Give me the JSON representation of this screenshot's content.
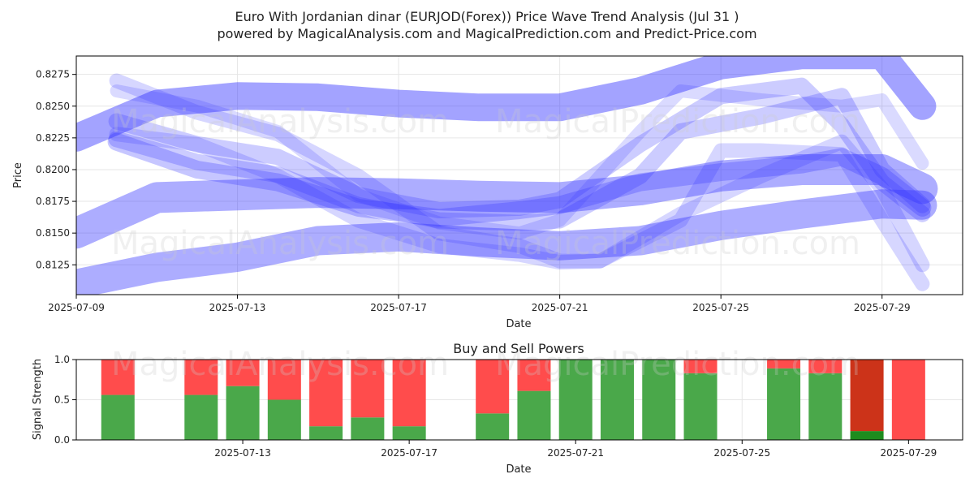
{
  "title_line1": "Euro With Jordanian dinar (EURJOD(Forex)) Price Wave Trend Analysis (Jul 31 )",
  "title_line2": "powered by MagicalAnalysis.com and MagicalPrediction.com and Predict-Price.com",
  "watermarks": [
    "MagicalAnalysis.com",
    "MagicalPrediction.com"
  ],
  "colors": {
    "wave": "#3333ff",
    "buy": "#4aa84a",
    "sell": "#ff4c4c",
    "buy_dark": "#1e8c1e",
    "sell_dark": "#cc3319"
  },
  "chart_data": [
    {
      "type": "line",
      "title": "",
      "xlabel": "Date",
      "ylabel": "Price",
      "x_ticks": [
        "2025-07-09",
        "2025-07-13",
        "2025-07-17",
        "2025-07-21",
        "2025-07-25",
        "2025-07-29"
      ],
      "y_ticks": [
        "0.8125",
        "0.8150",
        "0.8175",
        "0.8200",
        "0.8225",
        "0.8250",
        "0.8275"
      ],
      "xlim": [
        "2025-07-09",
        "2025-07-31"
      ],
      "ylim": [
        0.81015,
        0.82895
      ],
      "grid": true,
      "series": [
        {
          "x": [
            "2025-07-09",
            "2025-07-11",
            "2025-07-13",
            "2025-07-15",
            "2025-07-17",
            "2025-07-19",
            "2025-07-21",
            "2025-07-23",
            "2025-07-25",
            "2025-07-27",
            "2025-07-29",
            "2025-07-30"
          ],
          "values": [
            0.8225,
            0.8252,
            0.8258,
            0.8257,
            0.8252,
            0.8249,
            0.8249,
            0.8262,
            0.8282,
            0.829,
            0.829,
            0.825
          ],
          "width": 34,
          "opacity": 0.45
        },
        {
          "x": [
            "2025-07-09",
            "2025-07-11",
            "2025-07-13",
            "2025-07-15",
            "2025-07-17",
            "2025-07-19",
            "2025-07-21",
            "2025-07-23",
            "2025-07-25",
            "2025-07-27",
            "2025-07-29",
            "2025-07-30"
          ],
          "values": [
            0.815,
            0.8178,
            0.818,
            0.8182,
            0.8181,
            0.8179,
            0.8178,
            0.8184,
            0.8195,
            0.82,
            0.82,
            0.8185
          ],
          "width": 38,
          "opacity": 0.4
        },
        {
          "x": [
            "2025-07-09",
            "2025-07-11",
            "2025-07-13",
            "2025-07-15",
            "2025-07-17",
            "2025-07-19",
            "2025-07-21",
            "2025-07-23",
            "2025-07-25",
            "2025-07-27",
            "2025-07-29",
            "2025-07-30"
          ],
          "values": [
            0.811,
            0.8123,
            0.8131,
            0.8144,
            0.8147,
            0.8143,
            0.814,
            0.8144,
            0.8156,
            0.8165,
            0.8173,
            0.8172
          ],
          "width": 36,
          "opacity": 0.4
        },
        {
          "x": [
            "2025-07-10",
            "2025-07-12",
            "2025-07-14",
            "2025-07-16",
            "2025-07-18",
            "2025-07-20",
            "2025-07-21",
            "2025-07-23",
            "2025-07-24",
            "2025-07-26",
            "2025-07-28",
            "2025-07-29",
            "2025-07-30"
          ],
          "values": [
            0.8224,
            0.8206,
            0.8196,
            0.8172,
            0.816,
            0.8158,
            0.816,
            0.8195,
            0.823,
            0.8242,
            0.8258,
            0.82,
            0.8172
          ],
          "width": 20,
          "opacity": 0.25
        },
        {
          "x": [
            "2025-07-10",
            "2025-07-12",
            "2025-07-14",
            "2025-07-16",
            "2025-07-18",
            "2025-07-20",
            "2025-07-21",
            "2025-07-23",
            "2025-07-25",
            "2025-07-27",
            "2025-07-28",
            "2025-07-29",
            "2025-07-30"
          ],
          "values": [
            0.8238,
            0.822,
            0.821,
            0.818,
            0.8168,
            0.817,
            0.8176,
            0.822,
            0.8258,
            0.8266,
            0.8235,
            0.819,
            0.8165
          ],
          "width": 20,
          "opacity": 0.25
        },
        {
          "x": [
            "2025-07-10",
            "2025-07-12",
            "2025-07-14",
            "2025-07-16",
            "2025-07-18",
            "2025-07-20",
            "2025-07-21",
            "2025-07-22",
            "2025-07-24",
            "2025-07-25",
            "2025-07-26",
            "2025-07-28",
            "2025-07-29",
            "2025-07-30"
          ],
          "values": [
            0.827,
            0.8245,
            0.8228,
            0.8195,
            0.815,
            0.814,
            0.8128,
            0.8128,
            0.816,
            0.8215,
            0.8215,
            0.8212,
            0.816,
            0.811
          ],
          "width": 18,
          "opacity": 0.2
        },
        {
          "x": [
            "2025-07-10",
            "2025-07-12",
            "2025-07-14",
            "2025-07-16",
            "2025-07-18",
            "2025-07-20",
            "2025-07-21",
            "2025-07-22",
            "2025-07-24",
            "2025-07-26",
            "2025-07-28",
            "2025-07-29",
            "2025-07-30"
          ],
          "values": [
            0.8228,
            0.822,
            0.8195,
            0.816,
            0.814,
            0.8133,
            0.8127,
            0.8128,
            0.8165,
            0.8195,
            0.8222,
            0.8185,
            0.8125
          ],
          "width": 18,
          "opacity": 0.2
        },
        {
          "x": [
            "2025-07-10",
            "2025-07-12",
            "2025-07-14",
            "2025-07-16",
            "2025-07-18",
            "2025-07-20",
            "2025-07-21",
            "2025-07-23",
            "2025-07-25",
            "2025-07-27",
            "2025-07-28",
            "2025-07-29",
            "2025-07-30"
          ],
          "values": [
            0.8222,
            0.82,
            0.819,
            0.817,
            0.8162,
            0.8168,
            0.8172,
            0.819,
            0.8198,
            0.8204,
            0.821,
            0.8195,
            0.817
          ],
          "width": 22,
          "opacity": 0.28
        },
        {
          "x": [
            "2025-07-10",
            "2025-07-12",
            "2025-07-14",
            "2025-07-16",
            "2025-07-18",
            "2025-07-20",
            "2025-07-21",
            "2025-07-23",
            "2025-07-24",
            "2025-07-26",
            "2025-07-28",
            "2025-07-29",
            "2025-07-30"
          ],
          "values": [
            0.8262,
            0.825,
            0.823,
            0.818,
            0.8158,
            0.815,
            0.816,
            0.823,
            0.8262,
            0.8255,
            0.825,
            0.8255,
            0.8205
          ],
          "width": 16,
          "opacity": 0.18
        }
      ]
    },
    {
      "type": "bar",
      "title": "Buy and Sell Powers",
      "xlabel": "Date",
      "ylabel": "Signal Strength",
      "x_ticks": [
        "2025-07-13",
        "2025-07-17",
        "2025-07-21",
        "2025-07-25",
        "2025-07-29"
      ],
      "y_ticks": [
        "0.0",
        "0.5",
        "1.0"
      ],
      "ylim": [
        0,
        1
      ],
      "x": [
        "2025-07-10",
        "2025-07-12",
        "2025-07-13",
        "2025-07-14",
        "2025-07-15",
        "2025-07-16",
        "2025-07-17",
        "2025-07-19",
        "2025-07-20",
        "2025-07-21",
        "2025-07-22",
        "2025-07-23",
        "2025-07-24",
        "2025-07-26",
        "2025-07-27",
        "2025-07-28",
        "2025-07-29"
      ],
      "buy": [
        0.56,
        0.56,
        0.67,
        0.5,
        0.17,
        0.28,
        0.17,
        0.33,
        0.61,
        1.0,
        1.0,
        1.0,
        0.83,
        0.89,
        0.83,
        0.11,
        0.0
      ],
      "sell": [
        0.44,
        0.44,
        0.33,
        0.5,
        0.83,
        0.72,
        0.83,
        0.67,
        0.39,
        0.0,
        0.0,
        0.0,
        0.17,
        0.11,
        0.17,
        0.89,
        1.0
      ],
      "highlight_index": 15
    }
  ]
}
